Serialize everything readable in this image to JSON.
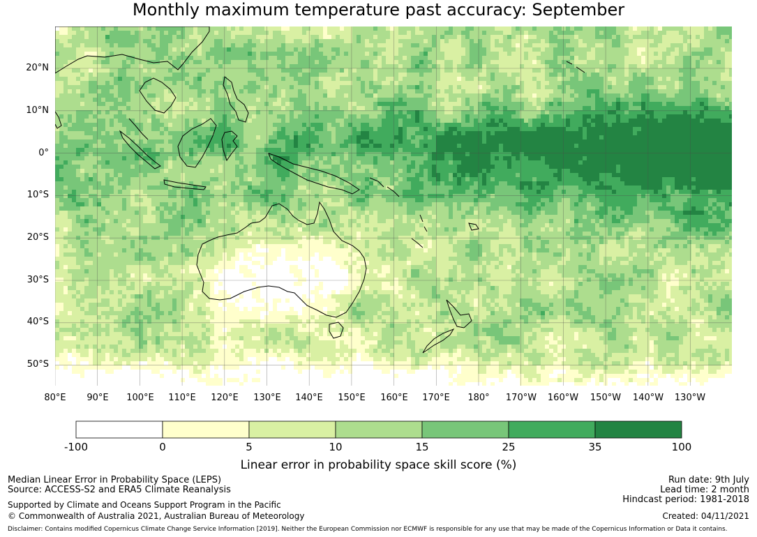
{
  "title": "Monthly maximum temperature past accuracy: September",
  "map": {
    "lat_labels": [
      "20°N",
      "10°N",
      "0°",
      "10°S",
      "20°S",
      "30°S",
      "40°S",
      "50°S"
    ],
    "lon_labels": [
      "80°E",
      "90°E",
      "100°E",
      "110°E",
      "120°E",
      "130°E",
      "140°E",
      "150°E",
      "160°E",
      "170°E",
      "180°",
      "170°W",
      "160°W",
      "150°W",
      "140°W",
      "130°W"
    ],
    "colors": {
      "land_outline": "#000000",
      "grid": "#555555"
    }
  },
  "colorbar": {
    "title": "Linear error in probability space skill score (%)",
    "ticks": [
      "-100",
      "0",
      "5",
      "10",
      "15",
      "25",
      "35",
      "100"
    ],
    "colors": [
      "#ffffff",
      "#ffffcc",
      "#d9f0a3",
      "#addd8e",
      "#78c679",
      "#41ab5d",
      "#238443"
    ]
  },
  "footer": {
    "line1": "Median Linear Error in Probability Space (LEPS)",
    "line2": "Source: ACCESS-S2 and ERA5 Climate Reanalysis",
    "line3": "Supported by Climate and Oceans Support Program in the Pacific",
    "line4": "© Commonwealth of Australia 2021, Australian Bureau of Meteorology",
    "run_date": "Run date: 9th July",
    "lead_time": "Lead time: 2 month",
    "hindcast": "Hindcast period: 1981-2018",
    "created": "Created: 04/11/2021",
    "disclaimer": "Disclaimer: Contains modified Copernicus Climate Change Service Information [2019]. Neither the European Commission nor ECMWF is responsible for any use that may be made of the Copernicus Information or Data it contains."
  }
}
